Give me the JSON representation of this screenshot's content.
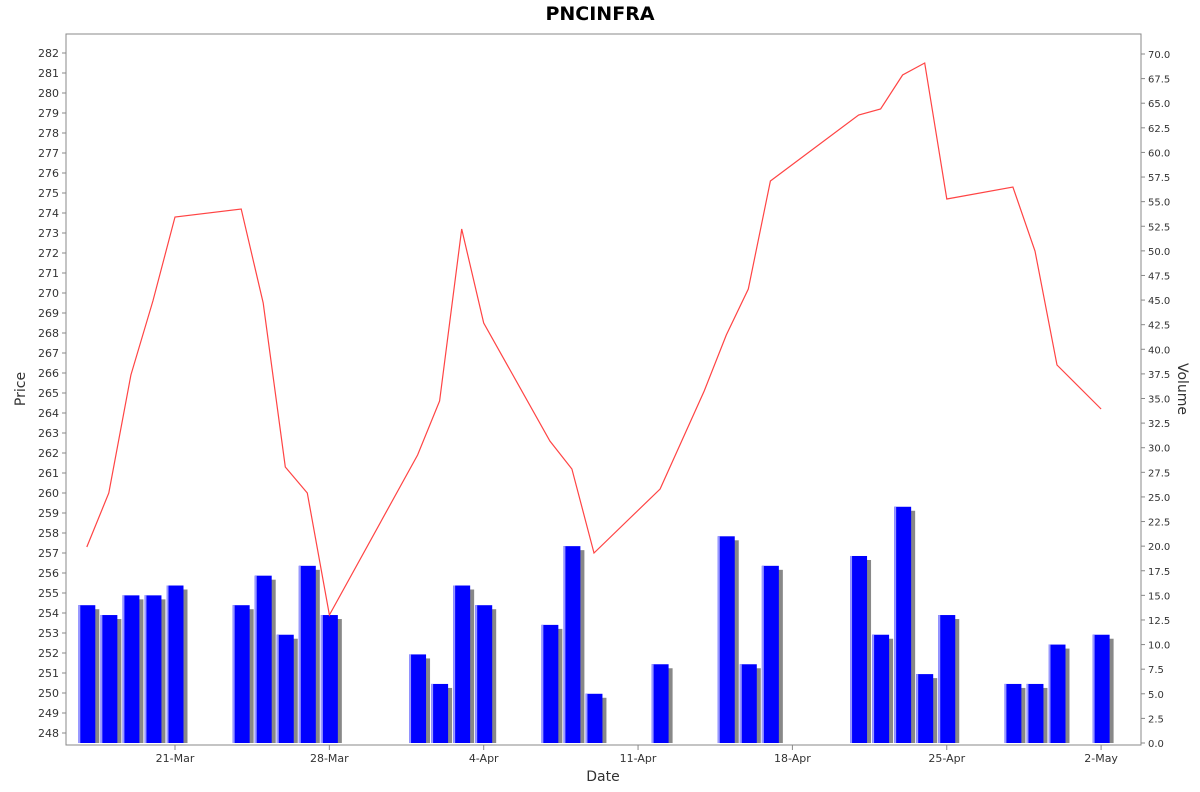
{
  "chart_data": {
    "type": "bar+line",
    "title": "PNCINFRA",
    "xlabel": "Date",
    "ylabel": "Price",
    "y2label": "Volume",
    "grid": false,
    "legend": "none",
    "x_tick_labels": [
      "21-Mar",
      "28-Mar",
      "4-Apr",
      "11-Apr",
      "18-Apr",
      "25-Apr",
      "2-May"
    ],
    "y_ticks": [
      248,
      249,
      250,
      251,
      252,
      253,
      254,
      255,
      256,
      257,
      258,
      259,
      260,
      261,
      262,
      263,
      264,
      265,
      266,
      267,
      268,
      269,
      270,
      271,
      272,
      273,
      274,
      275,
      276,
      277,
      278,
      279,
      280,
      281,
      282
    ],
    "y2_ticks": [
      "0.0",
      "2.5",
      "5.0",
      "7.5",
      "10.0",
      "12.5",
      "15.0",
      "17.5",
      "20.0",
      "22.5",
      "25.0",
      "27.5",
      "30.0",
      "32.5",
      "35.0",
      "37.5",
      "40.0",
      "42.5",
      "45.0",
      "47.5",
      "50.0",
      "52.5",
      "55.0",
      "57.5",
      "60.0",
      "62.5",
      "65.0",
      "67.5",
      "70.0"
    ],
    "ylim": [
      247.5,
      283.0
    ],
    "y2lim": [
      0,
      71.8
    ],
    "colors": {
      "price_line": "#ff4444",
      "volume_bar": "#0000ff",
      "bar_shadow": "#888888",
      "bar_highlight": "#9999ff"
    },
    "series": [
      {
        "name": "Price",
        "type": "line",
        "x": [
          "2024-03-17",
          "2024-03-18",
          "2024-03-19",
          "2024-03-20",
          "2024-03-21",
          "2024-03-24",
          "2024-03-25",
          "2024-03-26",
          "2024-03-27",
          "2024-03-28",
          "2024-04-01",
          "2024-04-02",
          "2024-04-03",
          "2024-04-04",
          "2024-04-07",
          "2024-04-08",
          "2024-04-09",
          "2024-04-12",
          "2024-04-14",
          "2024-04-15",
          "2024-04-16",
          "2024-04-17",
          "2024-04-21",
          "2024-04-22",
          "2024-04-23",
          "2024-04-24",
          "2024-04-25",
          "2024-04-28",
          "2024-04-29",
          "2024-04-30",
          "2024-05-02"
        ],
        "values": [
          257.3,
          260.0,
          265.9,
          269.6,
          273.8,
          274.2,
          269.5,
          261.3,
          260.0,
          253.9,
          261.9,
          264.6,
          273.2,
          268.5,
          262.6,
          261.2,
          257.0,
          260.2,
          265.1,
          267.9,
          270.2,
          275.6,
          278.9,
          279.2,
          280.9,
          281.5,
          274.7,
          275.3,
          272.1,
          266.4,
          264.2
        ]
      },
      {
        "name": "Volume",
        "type": "bar",
        "x": [
          "2024-03-17",
          "2024-03-18",
          "2024-03-19",
          "2024-03-20",
          "2024-03-21",
          "2024-03-24",
          "2024-03-25",
          "2024-03-26",
          "2024-03-27",
          "2024-03-28",
          "2024-04-01",
          "2024-04-02",
          "2024-04-03",
          "2024-04-04",
          "2024-04-07",
          "2024-04-08",
          "2024-04-09",
          "2024-04-12",
          "2024-04-15",
          "2024-04-16",
          "2024-04-17",
          "2024-04-21",
          "2024-04-22",
          "2024-04-23",
          "2024-04-24",
          "2024-04-25",
          "2024-04-28",
          "2024-04-29",
          "2024-04-30",
          "2024-05-02"
        ],
        "values": [
          14,
          13,
          15,
          15,
          16,
          14,
          17,
          11,
          18,
          13,
          9,
          6,
          16,
          14,
          12,
          20,
          5,
          8,
          21,
          8,
          18,
          19,
          11,
          24,
          7,
          13,
          6,
          6,
          10,
          11
        ]
      }
    ]
  }
}
